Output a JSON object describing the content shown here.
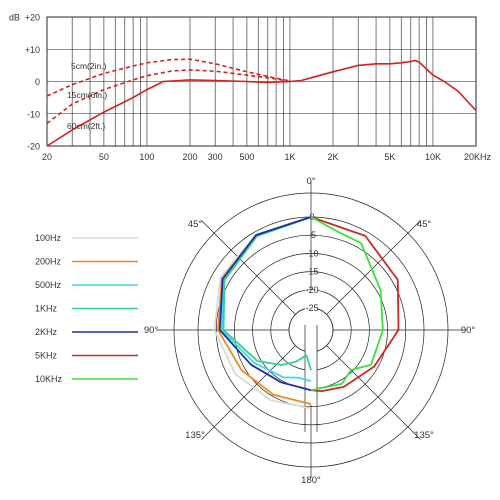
{
  "chart_data": [
    {
      "type": "line",
      "x_unit": "Hz",
      "y_unit": "dB",
      "x_scale": "log",
      "xlim": [
        20,
        20000
      ],
      "ylim": [
        -20,
        20
      ],
      "grid": true,
      "x_tick_labels": [
        {
          "value": 20,
          "label": "20"
        },
        {
          "value": 50,
          "label": "50"
        },
        {
          "value": 100,
          "label": "100"
        },
        {
          "value": 200,
          "label": "200"
        },
        {
          "value": 300,
          "label": "300"
        },
        {
          "value": 500,
          "label": "500"
        },
        {
          "value": 1000,
          "label": "1K"
        },
        {
          "value": 2000,
          "label": "2K"
        },
        {
          "value": 5000,
          "label": "5K"
        },
        {
          "value": 10000,
          "label": "10K"
        },
        {
          "value": 20000,
          "label": "20KHz"
        }
      ],
      "y_tick_labels": [
        {
          "value": 20,
          "label": "+20"
        },
        {
          "value": 10,
          "label": "+10"
        },
        {
          "value": 0,
          "label": "0"
        },
        {
          "value": -10,
          "label": "-10"
        },
        {
          "value": -20,
          "label": "-20"
        }
      ],
      "y_unit_label": "dB",
      "series": [
        {
          "name": "5cm(2in.)",
          "style": "dashed",
          "color": "#d42020",
          "points": [
            [
              20,
              -4.5
            ],
            [
              30,
              -1
            ],
            [
              50,
              2.5
            ],
            [
              80,
              4.8
            ],
            [
              100,
              5.8
            ],
            [
              150,
              6.8
            ],
            [
              200,
              6.9
            ],
            [
              300,
              5.5
            ],
            [
              500,
              3
            ],
            [
              800,
              1
            ],
            [
              1000,
              0.2
            ]
          ]
        },
        {
          "name": "15cm(6in.)",
          "style": "dashed",
          "color": "#d42020",
          "points": [
            [
              20,
              -13
            ],
            [
              30,
              -7
            ],
            [
              50,
              -2.5
            ],
            [
              80,
              0.5
            ],
            [
              100,
              1.8
            ],
            [
              150,
              3.3
            ],
            [
              200,
              3.6
            ],
            [
              300,
              3.2
            ],
            [
              500,
              2
            ],
            [
              800,
              0.8
            ],
            [
              1000,
              0
            ]
          ]
        },
        {
          "name": "60cm(2ft.)",
          "color": "#d42020",
          "points": [
            [
              20,
              -20
            ],
            [
              30,
              -15
            ],
            [
              50,
              -9.5
            ],
            [
              80,
              -5
            ],
            [
              100,
              -2.5
            ],
            [
              130,
              0
            ],
            [
              200,
              0.5
            ],
            [
              300,
              0.3
            ],
            [
              500,
              0
            ],
            [
              700,
              -0.3
            ],
            [
              1000,
              0
            ],
            [
              1200,
              0.3
            ],
            [
              1500,
              1.5
            ],
            [
              2000,
              3
            ],
            [
              3000,
              5
            ],
            [
              4000,
              5.5
            ],
            [
              5000,
              5.5
            ],
            [
              6000,
              5.8
            ],
            [
              7000,
              6.2
            ],
            [
              7500,
              6.5
            ],
            [
              8000,
              6
            ],
            [
              10000,
              2
            ],
            [
              12000,
              0
            ],
            [
              15000,
              -3
            ],
            [
              20000,
              -9
            ]
          ]
        }
      ],
      "annotations": [
        "5cm(2in.)",
        "15cm(6in.)",
        "60cm(2ft.)"
      ]
    },
    {
      "type": "polar",
      "r_unit": "dB",
      "r_tick_labels": [
        "0",
        "-5",
        "-10",
        "-15",
        "-20",
        "-25"
      ],
      "r_range": [
        -25,
        0
      ],
      "angle_labels": [
        {
          "angle": 0,
          "label": "0°"
        },
        {
          "angle": 45,
          "label": "45°"
        },
        {
          "angle": 90,
          "label": "90°"
        },
        {
          "angle": 135,
          "label": "135°"
        },
        {
          "angle": 180,
          "label": "180°"
        },
        {
          "angle": 225,
          "label": "135°"
        },
        {
          "angle": 270,
          "label": "90°"
        },
        {
          "angle": 315,
          "label": "45°"
        }
      ],
      "legend_position": "left",
      "series": [
        {
          "name": "100Hz",
          "color": "#d8d8d8",
          "side": "left",
          "points": [
            [
              0,
              0
            ],
            [
              30,
              -0.8
            ],
            [
              60,
              -2.3
            ],
            [
              90,
              -4.5
            ],
            [
              120,
              -7
            ],
            [
              150,
              -8.8
            ],
            [
              180,
              -9.5
            ]
          ]
        },
        {
          "name": "200Hz",
          "color": "#f28c1c",
          "side": "left",
          "points": [
            [
              0,
              0
            ],
            [
              30,
              -1
            ],
            [
              60,
              -2.8
            ],
            [
              90,
              -5.5
            ],
            [
              120,
              -9
            ],
            [
              150,
              -10.5
            ],
            [
              180,
              -10.7
            ]
          ]
        },
        {
          "name": "500Hz",
          "color": "#3fd8e8",
          "side": "left",
          "points": [
            [
              0,
              0
            ],
            [
              30,
              -1.2
            ],
            [
              60,
              -3.2
            ],
            [
              90,
              -6.5
            ],
            [
              120,
              -13
            ],
            [
              150,
              -16
            ],
            [
              165,
              -17.5
            ],
            [
              180,
              -17
            ]
          ]
        },
        {
          "name": "1KHz",
          "color": "#33d18e",
          "side": "left",
          "points": [
            [
              0,
              0
            ],
            [
              30,
              -1.3
            ],
            [
              60,
              -3.6
            ],
            [
              90,
              -7
            ],
            [
              120,
              -14
            ],
            [
              140,
              -18.5
            ],
            [
              155,
              -21.5
            ],
            [
              170,
              -24
            ],
            [
              180,
              -20
            ]
          ]
        },
        {
          "name": "2KHz",
          "color": "#1f2fa8",
          "side": "left",
          "points": [
            [
              0,
              0
            ],
            [
              30,
              -0.9
            ],
            [
              60,
              -3
            ],
            [
              90,
              -6
            ],
            [
              120,
              -12
            ],
            [
              150,
              -14.5
            ],
            [
              180,
              -14.5
            ]
          ]
        },
        {
          "name": "5KHz",
          "color": "#c92a2a",
          "side": "right",
          "points": [
            [
              0,
              0
            ],
            [
              30,
              -1.2
            ],
            [
              60,
              -3.5
            ],
            [
              90,
              -7
            ],
            [
              120,
              -11
            ],
            [
              150,
              -13
            ],
            [
              170,
              -14
            ],
            [
              180,
              -14.5
            ]
          ]
        },
        {
          "name": "10KHz",
          "color": "#3ee03e",
          "side": "right",
          "points": [
            [
              0,
              0
            ],
            [
              15,
              -3
            ],
            [
              30,
              -3.5
            ],
            [
              60,
              -9
            ],
            [
              90,
              -11.3
            ],
            [
              120,
              -12
            ],
            [
              135,
              -15.5
            ],
            [
              150,
              -14
            ],
            [
              180,
              -14.5
            ]
          ]
        }
      ]
    }
  ]
}
